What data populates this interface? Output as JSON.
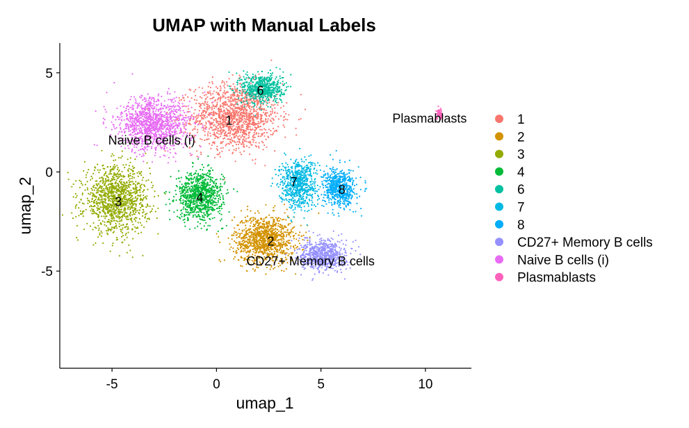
{
  "chart_data": {
    "type": "scatter",
    "title": "UMAP with Manual Labels",
    "xlabel": "umap_1",
    "ylabel": "umap_2",
    "xlim": [
      -7.5,
      12.2
    ],
    "ylim": [
      -9.9,
      6.5
    ],
    "xticks": [
      -5,
      0,
      5,
      10
    ],
    "yticks": [
      -5,
      0,
      5
    ],
    "grid": false,
    "legend_position": "right",
    "series": [
      {
        "name": "1",
        "color": "#F8766D",
        "center": [
          0.9,
          2.8
        ],
        "spread": [
          1.9,
          1.5
        ],
        "n": 1400
      },
      {
        "name": "2",
        "color": "#D39200",
        "center": [
          2.3,
          -3.4
        ],
        "spread": [
          1.3,
          1.1
        ],
        "n": 1100
      },
      {
        "name": "3",
        "color": "#93AA00",
        "center": [
          -4.8,
          -1.4
        ],
        "spread": [
          1.4,
          1.5
        ],
        "n": 1200
      },
      {
        "name": "4",
        "color": "#00BA38",
        "center": [
          -0.8,
          -1.2
        ],
        "spread": [
          1.0,
          1.1
        ],
        "n": 900
      },
      {
        "name": "6",
        "color": "#00C19F",
        "center": [
          2.2,
          4.2
        ],
        "spread": [
          0.9,
          0.7
        ],
        "n": 600
      },
      {
        "name": "7",
        "color": "#00B9E3",
        "center": [
          3.9,
          -0.6
        ],
        "spread": [
          0.8,
          1.1
        ],
        "n": 700
      },
      {
        "name": "8",
        "color": "#00ADFA",
        "center": [
          5.9,
          -0.8
        ],
        "spread": [
          0.7,
          0.9
        ],
        "n": 600
      },
      {
        "name": "CD27+ Memory B cells",
        "color": "#9590FF",
        "center": [
          5.1,
          -4.2
        ],
        "spread": [
          1.0,
          0.7
        ],
        "n": 700
      },
      {
        "name": "Naive B cells (i)",
        "color": "#E76BF3",
        "center": [
          -3.0,
          2.4
        ],
        "spread": [
          1.6,
          1.2
        ],
        "n": 1200
      },
      {
        "name": "Plasmablasts",
        "color": "#FF62BC",
        "center": [
          10.7,
          2.9
        ],
        "spread": [
          0.15,
          0.25
        ],
        "n": 60
      }
    ],
    "cluster_labels": [
      {
        "text": "1",
        "x": 0.6,
        "y": 2.6
      },
      {
        "text": "6",
        "x": 2.1,
        "y": 4.1
      },
      {
        "text": "Naive B cells (i)",
        "x": -3.1,
        "y": 1.6
      },
      {
        "text": "Plasmablasts",
        "x": 10.2,
        "y": 2.7
      },
      {
        "text": "7",
        "x": 3.7,
        "y": -0.5
      },
      {
        "text": "8",
        "x": 6.0,
        "y": -0.9
      },
      {
        "text": "3",
        "x": -4.7,
        "y": -1.5
      },
      {
        "text": "4",
        "x": -0.8,
        "y": -1.3
      },
      {
        "text": "2",
        "x": 2.6,
        "y": -3.5
      },
      {
        "text": "CD27+ Memory B cells",
        "x": 4.5,
        "y": -4.5
      }
    ]
  }
}
